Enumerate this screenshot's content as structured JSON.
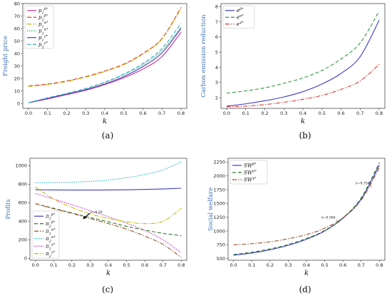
{
  "figure": {
    "panel_labels": [
      "(a)",
      "(b)",
      "(c)",
      "(d)"
    ]
  },
  "chart_data": [
    {
      "panel": "(a)",
      "type": "line",
      "xlabel": "k",
      "ylabel": "Freight price",
      "xlim": [
        -0.03,
        0.83
      ],
      "ylim": [
        -4,
        80
      ],
      "xticks": [
        0.0,
        0.1,
        0.2,
        0.3,
        0.4,
        0.5,
        0.6,
        0.7,
        0.8
      ],
      "yticks": [
        0,
        10,
        20,
        30,
        40,
        50,
        60,
        70,
        80
      ],
      "grid": false,
      "legend_position": "top-left",
      "x": [
        0.0,
        0.1,
        0.2,
        0.3,
        0.4,
        0.5,
        0.6,
        0.7,
        0.8
      ],
      "series": [
        {
          "name": "p_1^{β*}",
          "color": "#cc3399",
          "dash": "solid",
          "values": [
            0.5,
            3.5,
            7.0,
            10.5,
            15.0,
            20.5,
            27.5,
            37.5,
            57.0
          ]
        },
        {
          "name": "p_2^{β*}",
          "color": "#e03b3b",
          "dash": "6 3",
          "values": [
            14.0,
            15.5,
            18.0,
            21.5,
            26.0,
            31.5,
            40.0,
            52.0,
            77.0
          ]
        },
        {
          "name": "p_1^{α*}",
          "color": "#c9b800",
          "dash": "6 2 1.5 2",
          "values": [
            13.5,
            15.0,
            17.5,
            21.0,
            25.5,
            31.0,
            39.5,
            51.5,
            76.0
          ]
        },
        {
          "name": "p_2^{α*}",
          "color": "#2aa86a",
          "dash": "1.5 1.5",
          "values": [
            0.5,
            4.0,
            7.5,
            11.5,
            16.5,
            23.0,
            31.0,
            42.5,
            61.0
          ]
        },
        {
          "name": "p_1^{γ*}",
          "color": "#4a3fc1",
          "dash": "solid",
          "values": [
            0.5,
            4.0,
            7.5,
            11.0,
            15.5,
            21.5,
            29.5,
            40.5,
            60.0
          ]
        },
        {
          "name": "p_2^{γ*}",
          "color": "#2bb5c9",
          "dash": "5 3",
          "values": [
            0.5,
            4.5,
            8.0,
            12.0,
            17.0,
            23.5,
            32.0,
            44.0,
            64.0
          ]
        }
      ]
    },
    {
      "panel": "(b)",
      "type": "line",
      "xlabel": "k",
      "ylabel": "Carbon emission reduction",
      "xlim": [
        -0.03,
        0.83
      ],
      "ylim": [
        1.3,
        8.2
      ],
      "xticks": [
        0.0,
        0.1,
        0.2,
        0.3,
        0.4,
        0.5,
        0.6,
        0.7,
        0.8
      ],
      "yticks": [
        2,
        3,
        4,
        5,
        6,
        7,
        8
      ],
      "grid": false,
      "legend_position": "top-left",
      "x": [
        0.0,
        0.1,
        0.2,
        0.3,
        0.4,
        0.5,
        0.6,
        0.7,
        0.8
      ],
      "series": [
        {
          "name": "e^{β*}",
          "color": "#3d3dc8",
          "dash": "solid",
          "values": [
            1.45,
            1.6,
            1.8,
            2.05,
            2.4,
            2.9,
            3.6,
            4.7,
            7.1
          ]
        },
        {
          "name": "e^{α*}",
          "color": "#2e9a3a",
          "dash": "5 3",
          "values": [
            2.3,
            2.45,
            2.65,
            2.95,
            3.3,
            3.8,
            4.55,
            5.6,
            7.7
          ]
        },
        {
          "name": "e^{γ*}",
          "color": "#e03b3b",
          "dash": "6 2 1.5 2",
          "values": [
            1.4,
            1.45,
            1.55,
            1.7,
            1.9,
            2.15,
            2.55,
            3.1,
            4.2
          ]
        }
      ]
    },
    {
      "panel": "(c)",
      "type": "line",
      "xlabel": "k",
      "ylabel": "Profits",
      "xlim": [
        -0.03,
        0.83
      ],
      "ylim": [
        -20,
        1080
      ],
      "xticks": [
        0.0,
        0.1,
        0.2,
        0.3,
        0.4,
        0.5,
        0.6,
        0.7,
        0.8
      ],
      "yticks": [
        0,
        200,
        400,
        600,
        800,
        1000
      ],
      "grid": false,
      "legend_position": "bottom-left",
      "annotations": [
        {
          "text": "k=0.26",
          "x": 0.26,
          "y": 440
        }
      ],
      "x": [
        0.0,
        0.1,
        0.2,
        0.3,
        0.4,
        0.5,
        0.6,
        0.7,
        0.8
      ],
      "series": [
        {
          "name": "π_1^{β*}",
          "color": "#3d3dc8",
          "dash": "solid",
          "values": [
            740,
            738,
            737,
            737,
            738,
            740,
            744,
            749,
            757
          ]
        },
        {
          "name": "π_2^{β*}",
          "color": "#2e7a2e",
          "dash": "5 3",
          "values": [
            590,
            540,
            490,
            440,
            395,
            345,
            305,
            270,
            245
          ]
        },
        {
          "name": "π_1^{α*}",
          "color": "#a0522d",
          "dash": "6 2 1.5 2",
          "values": [
            590,
            535,
            485,
            430,
            375,
            315,
            240,
            150,
            10
          ]
        },
        {
          "name": "π_2^{α*}",
          "color": "#2bb5c9",
          "dash": "1.5 1.5",
          "values": [
            815,
            817,
            822,
            830,
            845,
            870,
            905,
            955,
            1040
          ]
        },
        {
          "name": "π_1^{γ*}",
          "color": "#cc33cc",
          "dash": "1.5 1.5",
          "values": [
            700,
            640,
            580,
            515,
            450,
            380,
            300,
            200,
            60
          ]
        },
        {
          "name": "π_2^{γ*}",
          "color": "#c9b800",
          "dash": "6 2 1.5 2",
          "values": [
            770,
            640,
            550,
            480,
            430,
            395,
            375,
            400,
            540
          ]
        }
      ]
    },
    {
      "panel": "(d)",
      "type": "line",
      "xlabel": "k",
      "ylabel": "Social welfare",
      "xlim": [
        -0.03,
        0.83
      ],
      "ylim": [
        470,
        2320
      ],
      "xticks": [
        0.0,
        0.1,
        0.2,
        0.3,
        0.4,
        0.5,
        0.6,
        0.7,
        0.8
      ],
      "yticks": [
        500,
        750,
        1000,
        1250,
        1500,
        1750,
        2000,
        2250
      ],
      "grid": false,
      "legend_position": "top-left",
      "annotations": [
        {
          "text": "k=0.566",
          "x": 0.566,
          "y": 1160
        },
        {
          "text": "k=0.754",
          "x": 0.754,
          "y": 1780
        }
      ],
      "x": [
        0.0,
        0.1,
        0.2,
        0.3,
        0.4,
        0.5,
        0.6,
        0.7,
        0.8
      ],
      "series": [
        {
          "name": "SW^{β*}",
          "color": "#3d3dc8",
          "dash": "solid",
          "values": [
            560,
            600,
            660,
            740,
            850,
            1000,
            1230,
            1580,
            2200
          ]
        },
        {
          "name": "SW^{α*}",
          "color": "#2e7a2e",
          "dash": "5 3",
          "values": [
            575,
            615,
            675,
            755,
            865,
            1010,
            1240,
            1600,
            2240
          ]
        },
        {
          "name": "SW^{γ*}",
          "color": "#a0522d",
          "dash": "6 2 1.5 2",
          "values": [
            750,
            770,
            805,
            860,
            935,
            1050,
            1240,
            1560,
            2150
          ]
        }
      ]
    }
  ]
}
